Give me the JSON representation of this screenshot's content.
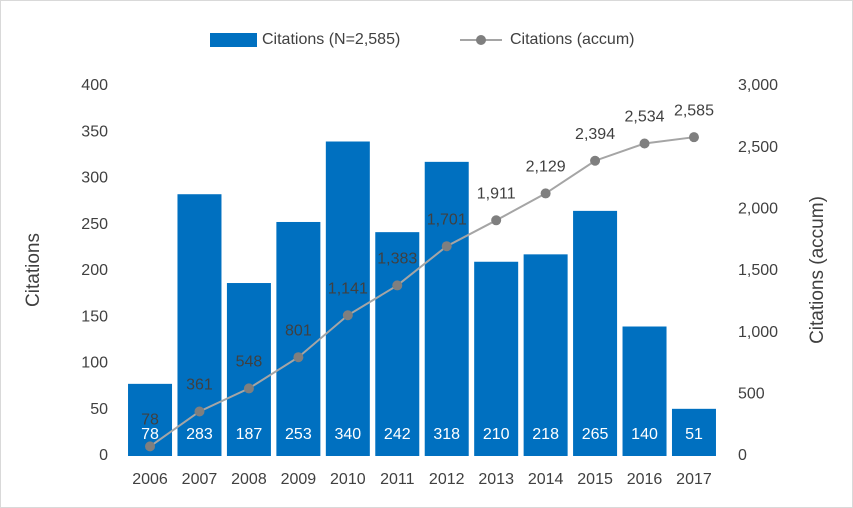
{
  "chart_data": {
    "type": "bar+line",
    "categories": [
      "2006",
      "2007",
      "2008",
      "2009",
      "2010",
      "2011",
      "2012",
      "2013",
      "2014",
      "2015",
      "2016",
      "2017"
    ],
    "series": [
      {
        "name": "Citations (N=2,585)",
        "type": "bar",
        "color": "#0070c0",
        "values": [
          78,
          283,
          187,
          253,
          340,
          242,
          318,
          210,
          218,
          265,
          140,
          51
        ]
      },
      {
        "name": "Citations (accum)",
        "type": "line",
        "axis": "y2",
        "color": "#a5a5a5",
        "marker_color": "#7f7f7f",
        "values": [
          78,
          361,
          548,
          801,
          1141,
          1383,
          1701,
          1911,
          2129,
          2394,
          2534,
          2585
        ],
        "value_labels": [
          "78",
          "361",
          "548",
          "801",
          "1,141",
          "1,383",
          "1,701",
          "1,911",
          "2,129",
          "2,394",
          "2,534",
          "2,585"
        ]
      }
    ],
    "ylabel": "Citations",
    "y2label": "Citations (accum)",
    "ylim": [
      0,
      400
    ],
    "yticks": [
      0,
      50,
      100,
      150,
      200,
      250,
      300,
      350,
      400
    ],
    "y2lim": [
      0,
      3000
    ],
    "y2ticks": [
      0,
      500,
      {
        "value": 1000,
        "label": "1,000"
      },
      {
        "value": 1500,
        "label": "1,500"
      },
      {
        "value": 2000,
        "label": "2,000"
      },
      {
        "value": 2500,
        "label": "2,500"
      },
      {
        "value": 3000,
        "label": "3,000"
      }
    ],
    "legend": "top"
  }
}
